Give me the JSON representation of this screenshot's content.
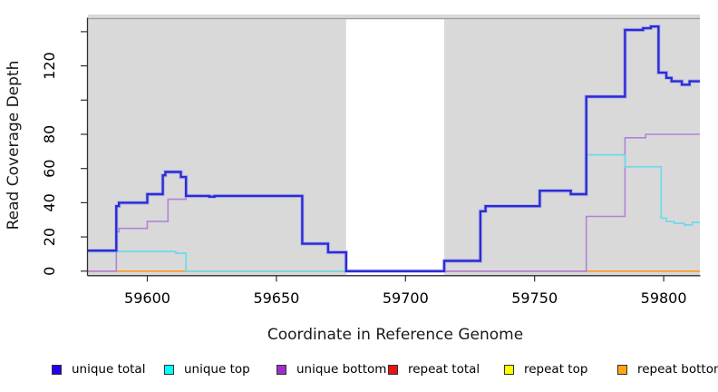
{
  "chart_data": {
    "type": "line",
    "subtype": "step",
    "title": "",
    "xlabel": "Coordinate in Reference Genome",
    "ylabel": "Read Coverage Depth",
    "xlim": [
      59577,
      59814
    ],
    "ylim": [
      0,
      150
    ],
    "grid": false,
    "legend_position": "bottom",
    "x_ticks": [
      {
        "value": 59600,
        "label": "59600"
      },
      {
        "value": 59650,
        "label": "59650"
      },
      {
        "value": 59700,
        "label": "59700"
      },
      {
        "value": 59750,
        "label": "59750"
      },
      {
        "value": 59800,
        "label": "59800"
      }
    ],
    "y_ticks": [
      {
        "value": 0,
        "label": "0"
      },
      {
        "value": 20,
        "label": "20"
      },
      {
        "value": 40,
        "label": "40"
      },
      {
        "value": 60,
        "label": "60"
      },
      {
        "value": 80,
        "label": "80"
      },
      {
        "value": 100,
        "label": ""
      },
      {
        "value": 120,
        "label": "120"
      },
      {
        "value": 140,
        "label": ""
      }
    ],
    "colors": {
      "plot_bg": "#d9d9d9",
      "gap_fill": "#ffffff",
      "axis": "#2f2f2f",
      "top_border": "#9e9e9e",
      "tick_label": "#000000"
    },
    "gap_region": {
      "from": 59677,
      "to": 59715
    },
    "series": [
      {
        "name": "unique total",
        "legend_color": "#2200ee",
        "line_color": "#2b2bd4",
        "halo_color": "#9a9af2",
        "width": 2.4,
        "points": [
          [
            59577,
            12
          ],
          [
            59588,
            38
          ],
          [
            59589,
            40
          ],
          [
            59600,
            45
          ],
          [
            59606,
            56
          ],
          [
            59607,
            58
          ],
          [
            59613,
            55
          ],
          [
            59615,
            44
          ],
          [
            59624,
            43.5
          ],
          [
            59626,
            44
          ],
          [
            59660,
            16
          ],
          [
            59670,
            11
          ],
          [
            59677,
            0
          ],
          [
            59715,
            6
          ],
          [
            59729,
            35
          ],
          [
            59731,
            38
          ],
          [
            59752,
            47
          ],
          [
            59764,
            45
          ],
          [
            59770,
            102
          ],
          [
            59785,
            141
          ],
          [
            59792,
            142
          ],
          [
            59795,
            143
          ],
          [
            59798,
            116
          ],
          [
            59801,
            113
          ],
          [
            59803,
            111
          ],
          [
            59807,
            109
          ],
          [
            59810,
            111
          ]
        ]
      },
      {
        "name": "unique top",
        "legend_color": "#00ffff",
        "line_color": "#70d9e8",
        "width": 1.7,
        "points": [
          [
            59577,
            11.5
          ],
          [
            59611,
            10.5
          ],
          [
            59615,
            0
          ],
          [
            59715,
            6
          ],
          [
            59729,
            35
          ],
          [
            59731,
            38
          ],
          [
            59752,
            47
          ],
          [
            59764,
            45
          ],
          [
            59770,
            68
          ],
          [
            59785,
            61
          ],
          [
            59799,
            31
          ],
          [
            59801,
            29
          ],
          [
            59804,
            28
          ],
          [
            59808,
            27
          ],
          [
            59811,
            28.5
          ]
        ]
      },
      {
        "name": "unique bottom",
        "legend_color": "#9d2fd0",
        "line_color": "#b282da",
        "width": 1.6,
        "points": [
          [
            59577,
            0
          ],
          [
            59588,
            23
          ],
          [
            59589,
            25
          ],
          [
            59600,
            29
          ],
          [
            59608,
            42
          ],
          [
            59615,
            44
          ],
          [
            59624,
            43.5
          ],
          [
            59626,
            44
          ],
          [
            59660,
            16
          ],
          [
            59670,
            11
          ],
          [
            59677,
            0
          ],
          [
            59770,
            32
          ],
          [
            59785,
            78
          ],
          [
            59793,
            80
          ]
        ]
      },
      {
        "name": "repeat total",
        "legend_color": "#ee1111",
        "line_color": "#cd4853",
        "width": 1.5,
        "points": [
          [
            59577,
            0
          ]
        ]
      },
      {
        "name": "repeat top",
        "legend_color": "#ffff00",
        "line_color": "#e6e67a",
        "width": 1.5,
        "points": [
          [
            59577,
            0
          ]
        ]
      },
      {
        "name": "repeat bottom",
        "legend_color": "#ffa510",
        "line_color": "#ff9d26",
        "width": 1.7,
        "points": [
          [
            59577,
            0
          ]
        ]
      }
    ],
    "zero_line_segments": [
      {
        "from": 59577,
        "to": 59588,
        "color": "#cf5fa6"
      },
      {
        "from": 59588,
        "to": 59615,
        "color": "#ff9d26"
      },
      {
        "from": 59615,
        "to": 59677,
        "color": "#79c57f"
      },
      {
        "from": 59715,
        "to": 59770,
        "color": "#cd4853"
      },
      {
        "from": 59770,
        "to": 59814,
        "color": "#ff9d26"
      }
    ]
  }
}
